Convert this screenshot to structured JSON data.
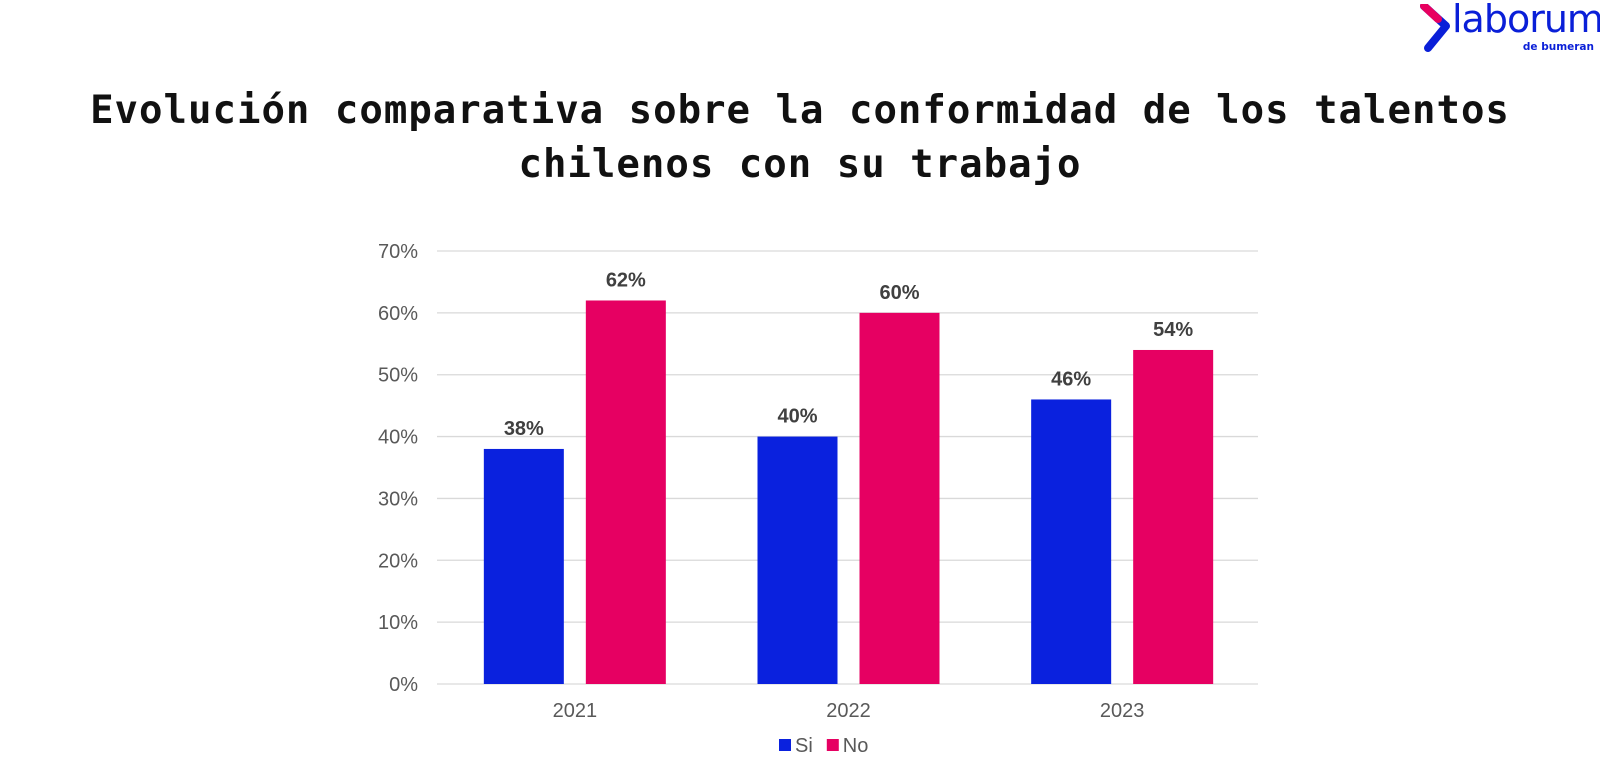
{
  "logo": {
    "word": "laborum",
    "sub": "de bumeran",
    "colors": {
      "primary": "#0a1fd8",
      "accent": "#e8005f"
    }
  },
  "chart_data": {
    "type": "bar",
    "title": "Evolución comparativa sobre la conformidad de los talentos chilenos con su trabajo",
    "categories": [
      "2021",
      "2022",
      "2023"
    ],
    "series": [
      {
        "name": "Si",
        "values": [
          38,
          40,
          46
        ],
        "color": "#0a21de"
      },
      {
        "name": "No",
        "values": [
          62,
          60,
          54
        ],
        "color": "#e60062"
      }
    ],
    "value_format": "percent",
    "ylim": [
      0,
      70
    ],
    "yticks": [
      0,
      10,
      20,
      30,
      40,
      50,
      60,
      70
    ],
    "grid": true,
    "legend": "bottom-center",
    "data_labels": true
  }
}
